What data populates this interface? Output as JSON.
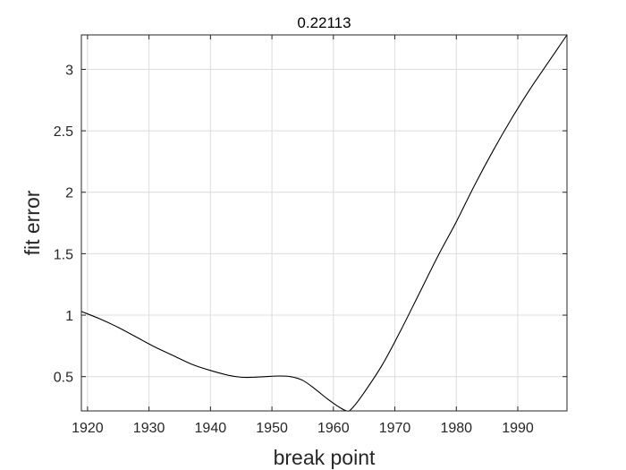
{
  "chart_data": {
    "type": "line",
    "title": "0.22113",
    "xlabel": "break point",
    "ylabel": "fit error",
    "xlim": [
      1919,
      1998
    ],
    "ylim": [
      0.221,
      3.28
    ],
    "grid": true,
    "xticks": [
      1920,
      1930,
      1940,
      1950,
      1960,
      1970,
      1980,
      1990
    ],
    "xtick_labels": [
      "1920",
      "1930",
      "1940",
      "1950",
      "1960",
      "1970",
      "1980",
      "1990"
    ],
    "yticks": [
      0.5,
      1,
      1.5,
      2,
      2.5,
      3
    ],
    "ytick_labels": [
      "0.5",
      "1",
      "1.5",
      "2",
      "2.5",
      "3"
    ],
    "line_color": "#000000",
    "series": [
      {
        "x": [
          1919,
          1922,
          1925,
          1928,
          1931,
          1934,
          1937,
          1940,
          1943,
          1945,
          1947,
          1949,
          1951,
          1953,
          1955,
          1957,
          1959,
          1961,
          1962.2,
          1963,
          1965,
          1968,
          1971,
          1974,
          1977,
          1980,
          1983,
          1986,
          1989,
          1992,
          1995,
          1998
        ],
        "y": [
          1.03,
          0.97,
          0.9,
          0.82,
          0.74,
          0.67,
          0.6,
          0.55,
          0.51,
          0.495,
          0.495,
          0.5,
          0.505,
          0.5,
          0.47,
          0.4,
          0.32,
          0.25,
          0.221,
          0.24,
          0.37,
          0.6,
          0.88,
          1.18,
          1.48,
          1.76,
          2.06,
          2.34,
          2.6,
          2.84,
          3.06,
          3.28
        ]
      }
    ]
  }
}
